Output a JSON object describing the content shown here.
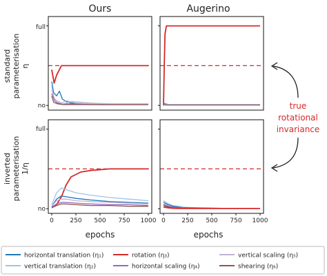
{
  "column_titles": [
    "Ours",
    "Augerino"
  ],
  "row_labels": [
    {
      "line1": "standard",
      "line2": "parameterisation",
      "line3": "η"
    },
    {
      "line1": "inverted",
      "line2": "parameterisation",
      "line3": "1/η"
    }
  ],
  "ytick_labels": {
    "full": "full",
    "no": "no"
  },
  "xlabel": "epochs",
  "annotation": [
    "true",
    "rotational",
    "invariance"
  ],
  "colors": {
    "h_translation": "#1f77b4",
    "v_translation": "#9ec3e6",
    "rotation": "#d62728",
    "h_scaling": "#9467bd",
    "v_scaling": "#c5b0d5",
    "shearing": "#8c564b",
    "annotation": "#d62728"
  },
  "legend": [
    {
      "key": "h_translation",
      "label": "horizontal translation (η₁)"
    },
    {
      "key": "v_translation",
      "label": "vertical translation (η₂)"
    },
    {
      "key": "rotation",
      "label": "rotation (η₃)"
    },
    {
      "key": "h_scaling",
      "label": "horizontal scaling (η₄)"
    },
    {
      "key": "v_scaling",
      "label": "vertical scaling (η₅)"
    },
    {
      "key": "shearing",
      "label": "shearing (η₆)"
    }
  ],
  "chart_data": [
    {
      "type": "line",
      "panel": "ours-standard",
      "xlim": [
        0,
        1000
      ],
      "ylim": [
        0,
        1
      ],
      "xticks": [
        0,
        250,
        500,
        750,
        1000
      ],
      "reference_line": 0.5,
      "series": [
        {
          "key": "rotation",
          "x": [
            0,
            25,
            50,
            100,
            200,
            400,
            600,
            800,
            1000
          ],
          "y": [
            0.45,
            0.28,
            0.38,
            0.5,
            0.5,
            0.5,
            0.5,
            0.5,
            0.5
          ]
        },
        {
          "key": "h_translation",
          "x": [
            0,
            20,
            50,
            80,
            110,
            150,
            200,
            300,
            500,
            1000
          ],
          "y": [
            0.3,
            0.16,
            0.12,
            0.18,
            0.08,
            0.05,
            0.03,
            0.02,
            0.01,
            0.01
          ]
        },
        {
          "key": "v_translation",
          "x": [
            0,
            20,
            50,
            100,
            150,
            250,
            400,
            600,
            1000
          ],
          "y": [
            0.25,
            0.1,
            0.06,
            0.03,
            0.06,
            0.03,
            0.02,
            0.02,
            0.02
          ]
        },
        {
          "key": "h_scaling",
          "x": [
            0,
            30,
            60,
            100,
            200,
            400,
            1000
          ],
          "y": [
            0.15,
            0.06,
            0.03,
            0.02,
            0.02,
            0.01,
            0.01
          ]
        },
        {
          "key": "v_scaling",
          "x": [
            0,
            30,
            70,
            120,
            200,
            400,
            600,
            1000
          ],
          "y": [
            0.2,
            0.08,
            0.04,
            0.02,
            0.05,
            0.03,
            0.02,
            0.02
          ]
        },
        {
          "key": "shearing",
          "x": [
            0,
            20,
            60,
            120,
            200,
            400,
            1000
          ],
          "y": [
            0.12,
            0.04,
            0.02,
            0.01,
            0.01,
            0.01,
            0.01
          ]
        }
      ]
    },
    {
      "type": "line",
      "panel": "augerino-standard",
      "xlim": [
        0,
        1000
      ],
      "ylim": [
        0,
        1
      ],
      "xticks": [
        0,
        250,
        500,
        750,
        1000
      ],
      "reference_line": 0.5,
      "series": [
        {
          "key": "rotation",
          "x": [
            0,
            8,
            16,
            30,
            60,
            1000
          ],
          "y": [
            0.0,
            0.5,
            0.9,
            1.0,
            1.0,
            1.0
          ]
        },
        {
          "key": "h_translation",
          "x": [
            0,
            20,
            60,
            1000
          ],
          "y": [
            0.03,
            0.02,
            0.01,
            0.01
          ]
        },
        {
          "key": "v_translation",
          "x": [
            0,
            20,
            60,
            1000
          ],
          "y": [
            0.02,
            0.015,
            0.01,
            0.01
          ]
        },
        {
          "key": "h_scaling",
          "x": [
            0,
            30,
            1000
          ],
          "y": [
            0.02,
            0.01,
            0.01
          ]
        },
        {
          "key": "v_scaling",
          "x": [
            0,
            30,
            1000
          ],
          "y": [
            0.015,
            0.01,
            0.01
          ]
        },
        {
          "key": "shearing",
          "x": [
            0,
            30,
            1000
          ],
          "y": [
            0.01,
            0.005,
            0.005
          ]
        }
      ]
    },
    {
      "type": "line",
      "panel": "ours-inverted",
      "xlim": [
        0,
        1000
      ],
      "ylim": [
        0,
        1
      ],
      "xticks": [
        0,
        250,
        500,
        750,
        1000
      ],
      "reference_line": 0.5,
      "series": [
        {
          "key": "rotation",
          "x": [
            0,
            50,
            100,
            150,
            200,
            300,
            400,
            600,
            800,
            1000
          ],
          "y": [
            0.02,
            0.05,
            0.15,
            0.3,
            0.4,
            0.46,
            0.48,
            0.5,
            0.5,
            0.5
          ]
        },
        {
          "key": "v_translation",
          "x": [
            0,
            50,
            100,
            150,
            250,
            400,
            600,
            800,
            1000
          ],
          "y": [
            0.05,
            0.2,
            0.26,
            0.24,
            0.2,
            0.17,
            0.14,
            0.12,
            0.1
          ]
        },
        {
          "key": "h_translation",
          "x": [
            0,
            50,
            100,
            150,
            250,
            400,
            600,
            800,
            1000
          ],
          "y": [
            0.03,
            0.12,
            0.16,
            0.15,
            0.13,
            0.11,
            0.09,
            0.08,
            0.07
          ]
        },
        {
          "key": "v_scaling",
          "x": [
            0,
            50,
            100,
            150,
            250,
            400,
            600,
            800,
            1000
          ],
          "y": [
            0.03,
            0.1,
            0.12,
            0.12,
            0.1,
            0.09,
            0.08,
            0.07,
            0.06
          ]
        },
        {
          "key": "h_scaling",
          "x": [
            0,
            50,
            100,
            150,
            250,
            400,
            600,
            800,
            1000
          ],
          "y": [
            0.02,
            0.06,
            0.08,
            0.08,
            0.07,
            0.06,
            0.05,
            0.05,
            0.04
          ]
        },
        {
          "key": "shearing",
          "x": [
            0,
            50,
            100,
            150,
            250,
            400,
            600,
            800,
            1000
          ],
          "y": [
            0.01,
            0.04,
            0.06,
            0.06,
            0.05,
            0.04,
            0.04,
            0.03,
            0.03
          ]
        }
      ]
    },
    {
      "type": "line",
      "panel": "augerino-inverted",
      "xlim": [
        0,
        1000
      ],
      "ylim": [
        0,
        1
      ],
      "xticks": [
        0,
        250,
        500,
        750,
        1000
      ],
      "reference_line": 0.5,
      "series": [
        {
          "key": "v_translation",
          "x": [
            0,
            50,
            100,
            200,
            350,
            600,
            1000
          ],
          "y": [
            0.1,
            0.06,
            0.04,
            0.02,
            0.01,
            0.005,
            0.005
          ]
        },
        {
          "key": "h_translation",
          "x": [
            0,
            50,
            100,
            200,
            350,
            600,
            1000
          ],
          "y": [
            0.08,
            0.05,
            0.03,
            0.015,
            0.01,
            0.005,
            0.005
          ]
        },
        {
          "key": "v_scaling",
          "x": [
            0,
            50,
            100,
            200,
            350,
            1000
          ],
          "y": [
            0.06,
            0.04,
            0.02,
            0.01,
            0.005,
            0.005
          ]
        },
        {
          "key": "h_scaling",
          "x": [
            0,
            50,
            100,
            200,
            350,
            1000
          ],
          "y": [
            0.05,
            0.03,
            0.02,
            0.01,
            0.005,
            0.005
          ]
        },
        {
          "key": "shearing",
          "x": [
            0,
            50,
            100,
            200,
            1000
          ],
          "y": [
            0.04,
            0.02,
            0.01,
            0.005,
            0.005
          ]
        },
        {
          "key": "rotation",
          "x": [
            0,
            50,
            100,
            200,
            1000
          ],
          "y": [
            0.02,
            0.01,
            0.005,
            0.003,
            0.003
          ]
        }
      ]
    }
  ]
}
